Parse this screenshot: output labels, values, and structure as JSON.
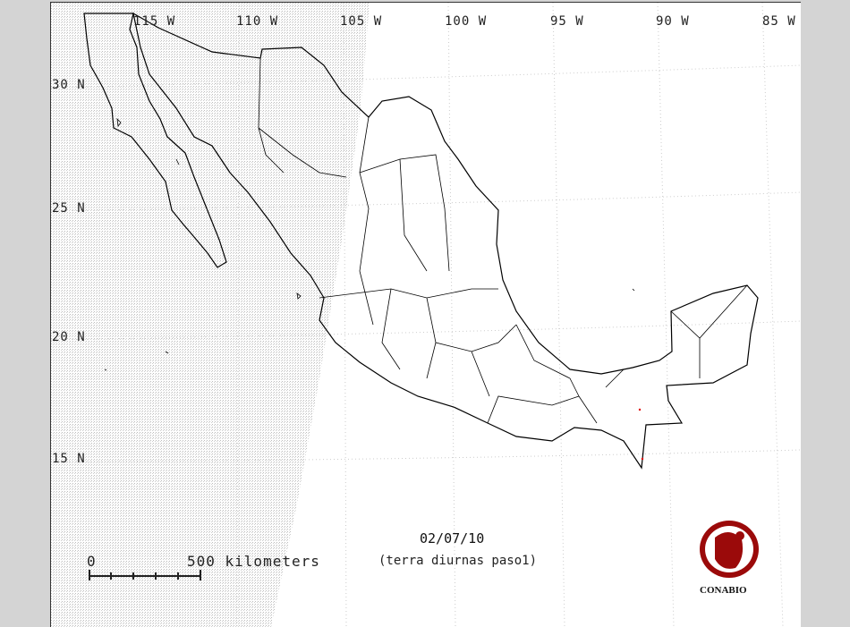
{
  "map": {
    "longitude_labels": [
      "115 W",
      "110 W",
      "105 W",
      "100 W",
      "95 W",
      "90 W",
      "85 W"
    ],
    "latitude_labels": [
      "30 N",
      "25 N",
      "20 N",
      "15 N"
    ],
    "date": "02/07/10",
    "subtitle": "(terra diurnas paso1)",
    "scale_bar": {
      "start_label": "0",
      "end_label": "500 kilometers"
    },
    "logo": {
      "text": "CONABIO",
      "color": "#9b0a0a"
    },
    "fire_point_color": "#e00000",
    "colors": {
      "background": "#d4d4d4",
      "map": "#ffffff",
      "stipple": "#c8c8c8",
      "outline": "#000000"
    }
  }
}
